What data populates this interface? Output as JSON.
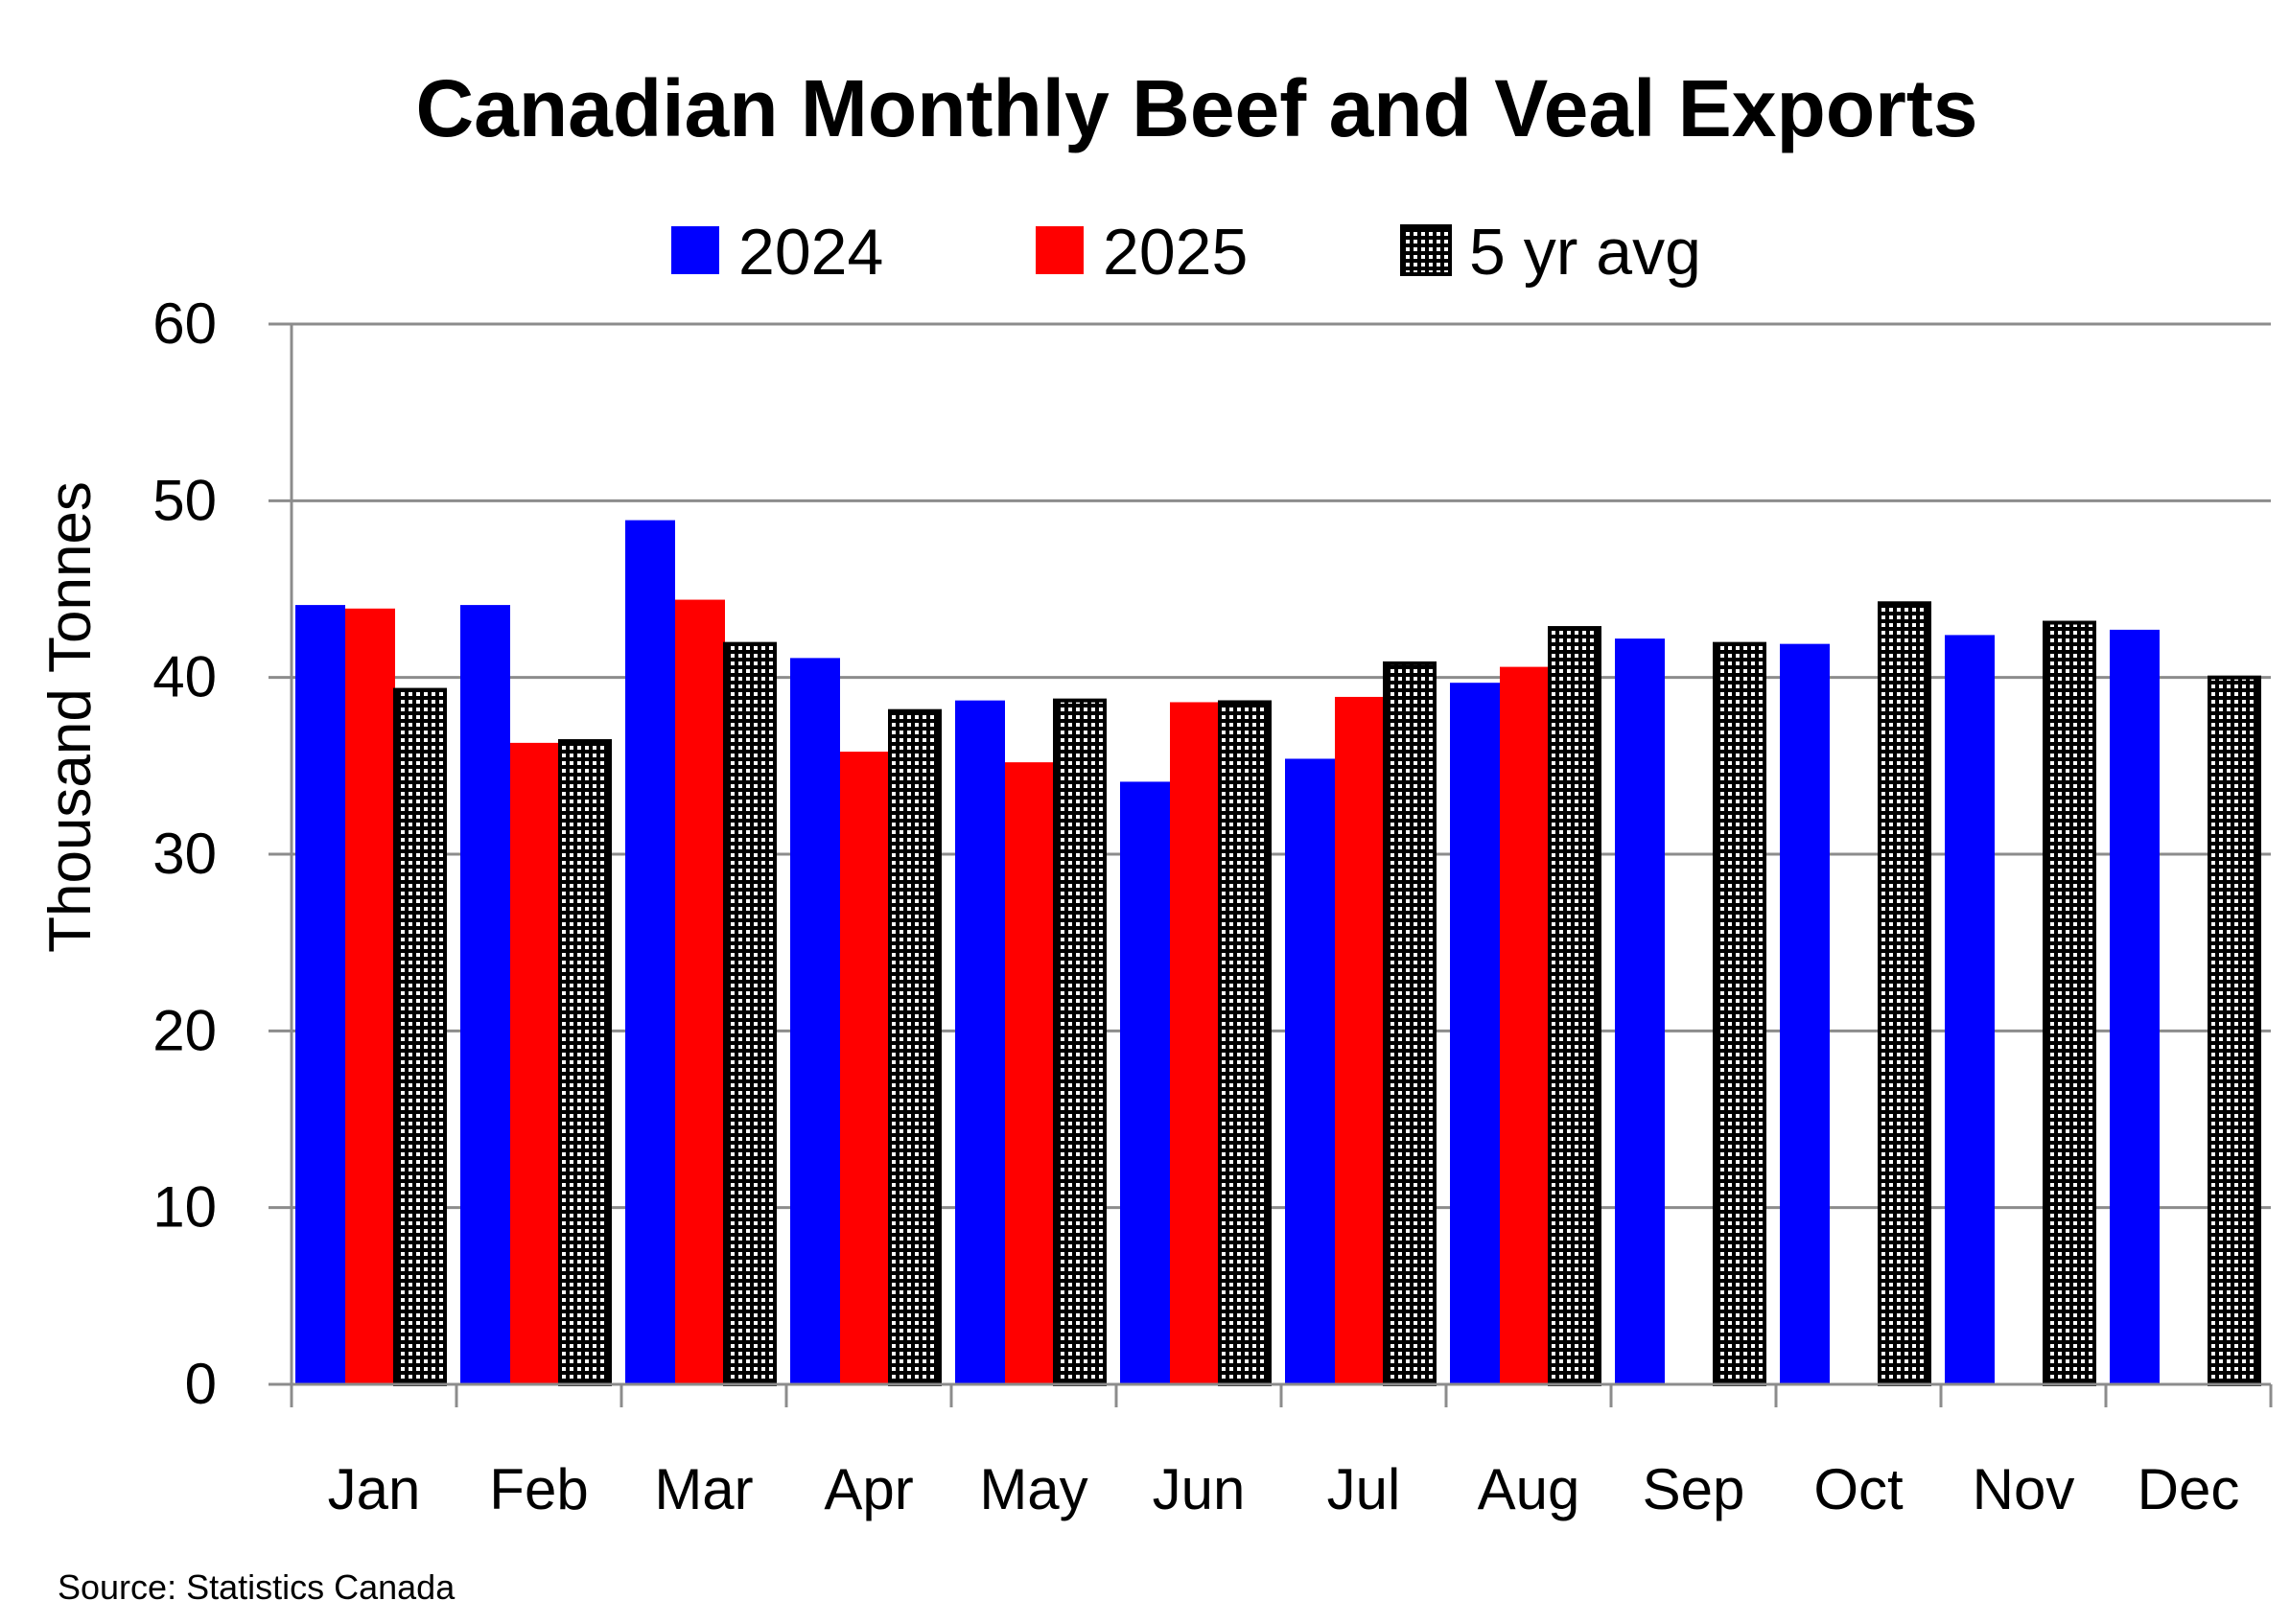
{
  "chart_data": {
    "type": "bar",
    "title": "Canadian Monthly Beef and Veal Exports",
    "xlabel": "",
    "ylabel": "Thousand Tonnes",
    "ylim": [
      0,
      60
    ],
    "yticks": [
      "0",
      "10",
      "20",
      "30",
      "40",
      "50",
      "60"
    ],
    "grid": true,
    "legend_position": "top",
    "categories": [
      "Jan",
      "Feb",
      "Mar",
      "Apr",
      "May",
      "Jun",
      "Jul",
      "Aug",
      "Sep",
      "Oct",
      "Nov",
      "Dec"
    ],
    "series": [
      {
        "name": "2024",
        "color": "#0000ff",
        "pattern": "solid",
        "values": [
          44.1,
          44.1,
          48.9,
          41.1,
          38.7,
          34.1,
          35.4,
          39.7,
          42.2,
          41.9,
          42.4,
          42.7
        ]
      },
      {
        "name": "2025",
        "color": "#ff0000",
        "pattern": "solid",
        "values": [
          43.9,
          36.3,
          44.4,
          35.8,
          35.2,
          38.6,
          38.9,
          40.6,
          null,
          null,
          null,
          null
        ]
      },
      {
        "name": "5 yr avg",
        "color": "#000000",
        "pattern": "dotted-black-white",
        "values": [
          39.3,
          36.4,
          41.9,
          38.1,
          38.7,
          38.6,
          40.8,
          42.8,
          41.9,
          44.2,
          43.1,
          40.0
        ]
      }
    ],
    "source": "Source: Statistics Canada"
  }
}
